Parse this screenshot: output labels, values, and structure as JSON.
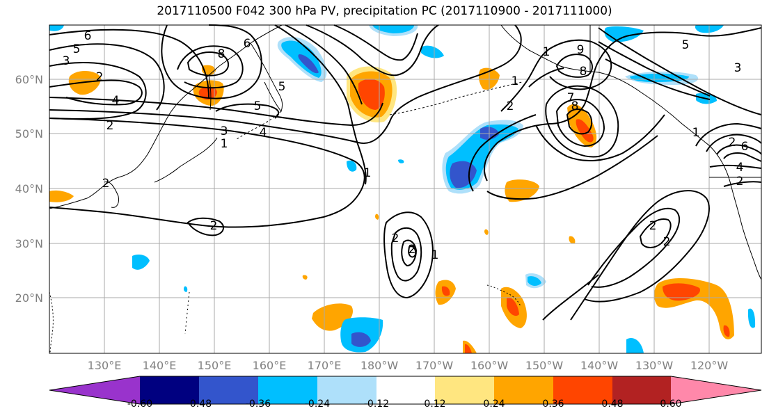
{
  "title": "2017110500 F042 300 hPa PV, precipitation PC (2017110900 - 2017111000)",
  "lat_labels": [
    "60°N",
    "50°N",
    "40°N",
    "30°N",
    "20°N"
  ],
  "lon_labels": [
    "130°E",
    "140°E",
    "150°E",
    "160°E",
    "170°E",
    "180°W",
    "170°W",
    "160°W",
    "150°W",
    "140°W",
    "130°W",
    "120°W"
  ],
  "colorbar": {
    "colors": [
      "#9933cc",
      "#000080",
      "#3355cc",
      "#00bfff",
      "#aee0fa",
      "#ffffff",
      "#ffe680",
      "#ffa500",
      "#ff4500",
      "#b22222",
      "#ff88aa"
    ],
    "tick_labels": [
      "-0.60",
      "-0.48",
      "-0.36",
      "-0.24",
      "-0.12",
      "0.12",
      "0.24",
      "0.36",
      "0.48",
      "0.60"
    ]
  },
  "contour_labels": [
    "6",
    "5",
    "3",
    "2",
    "4",
    "2",
    "2",
    "8",
    "6",
    "5",
    "5",
    "4",
    "3",
    "1",
    "2",
    "1",
    "2",
    "1",
    "2",
    "9",
    "8",
    "7",
    "8",
    "1",
    "2",
    "1",
    "5",
    "3",
    "1",
    "2",
    "6",
    "4",
    "2",
    "2",
    "2"
  ]
}
